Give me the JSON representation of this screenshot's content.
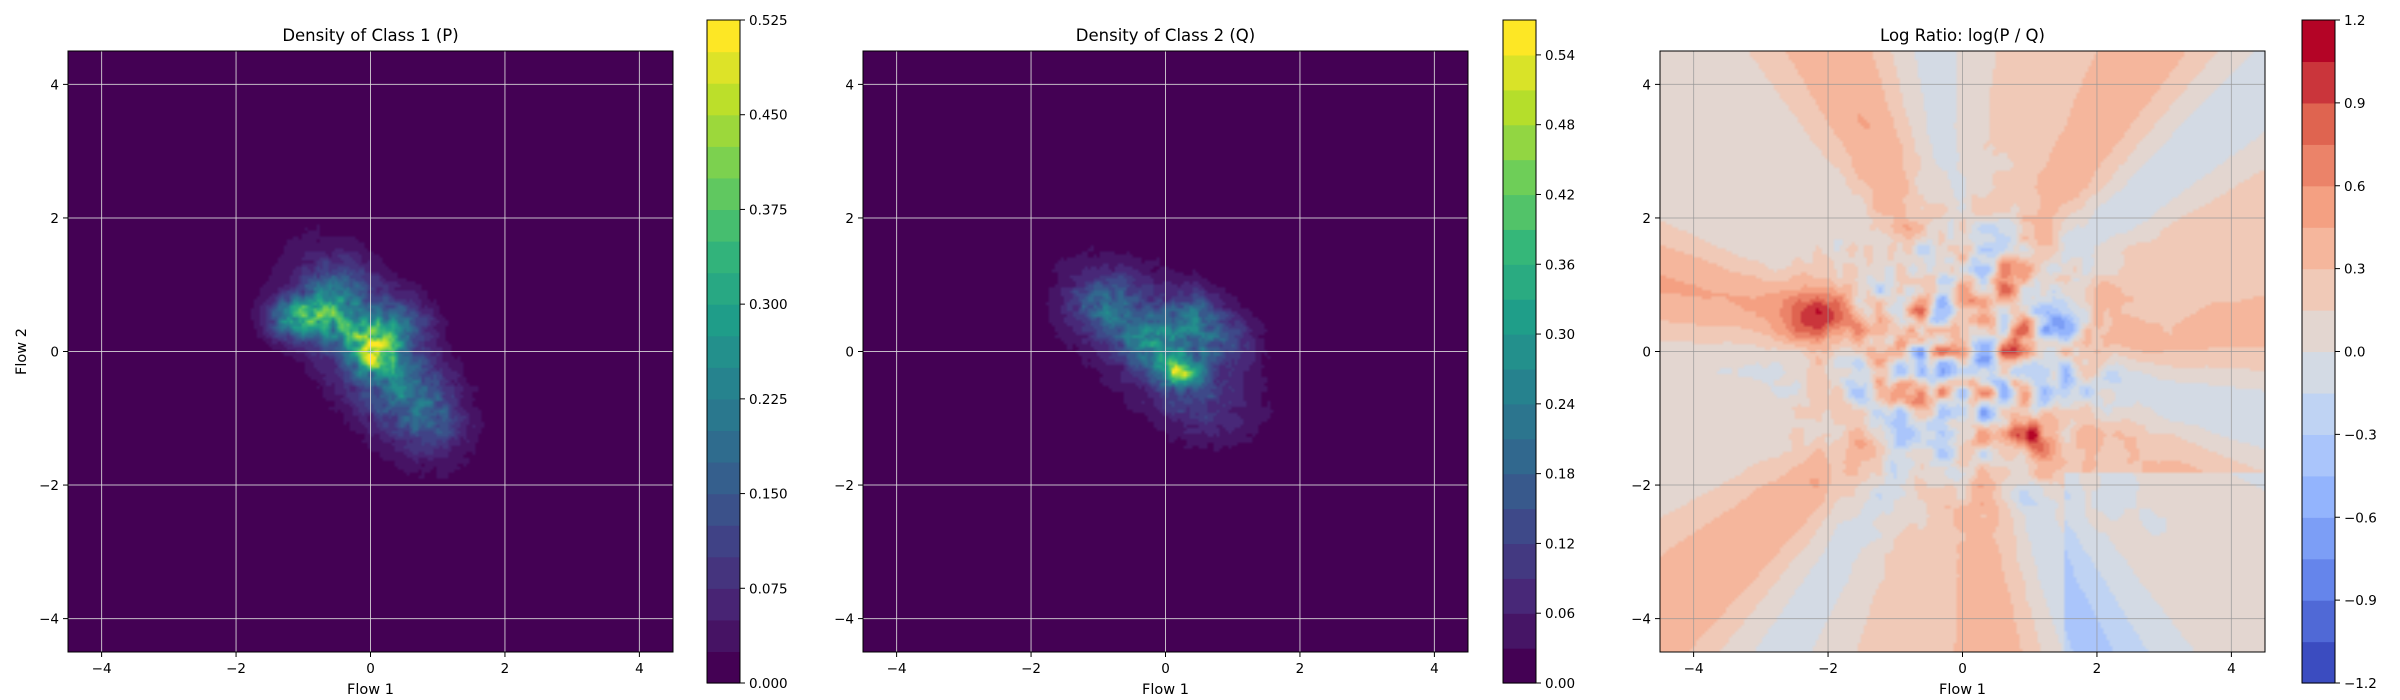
{
  "chart_data": [
    {
      "type": "contour",
      "title": "Density of Class 1 (P)",
      "xlabel": "Flow 1",
      "ylabel": "Flow 2",
      "xlim": [
        -4.5,
        4.5
      ],
      "ylim": [
        -4.5,
        4.5
      ],
      "xticks": [
        -4,
        -2,
        0,
        2,
        4
      ],
      "yticks": [
        -4,
        -2,
        0,
        2,
        4
      ],
      "xtick_labels": [
        "−4",
        "−2",
        "0",
        "2",
        "4"
      ],
      "ytick_labels": [
        "−4",
        "−2",
        "0",
        "2",
        "4"
      ],
      "grid": true,
      "colormap": "viridis",
      "colorbar": {
        "min": 0.0,
        "max": 0.525,
        "levels": 21,
        "ticks": [
          0.0,
          0.075,
          0.15,
          0.225,
          0.3,
          0.375,
          0.45,
          0.525
        ],
        "tick_labels": [
          "0.000",
          "0.075",
          "0.150",
          "0.225",
          "0.300",
          "0.375",
          "0.450",
          "0.525"
        ]
      },
      "blobs": [
        {
          "x": 0.0,
          "y": 0.0,
          "sx": 1.15,
          "sy": 0.55,
          "rot_deg": -55,
          "amp": 0.12
        },
        {
          "x": -1.1,
          "y": 0.5,
          "sx": 0.3,
          "sy": 0.22,
          "rot_deg": 0,
          "amp": 0.24
        },
        {
          "x": -0.6,
          "y": 0.55,
          "sx": 0.3,
          "sy": 0.25,
          "rot_deg": 0,
          "amp": 0.16
        },
        {
          "x": 0.0,
          "y": 0.05,
          "sx": 0.3,
          "sy": 0.25,
          "rot_deg": -40,
          "amp": 0.28
        },
        {
          "x": 0.05,
          "y": -0.05,
          "sx": 0.1,
          "sy": 0.08,
          "rot_deg": -40,
          "amp": 0.2
        },
        {
          "x": 0.4,
          "y": 0.4,
          "sx": 0.35,
          "sy": 0.3,
          "rot_deg": 0,
          "amp": 0.12
        },
        {
          "x": 0.6,
          "y": -0.6,
          "sx": 0.4,
          "sy": 0.3,
          "rot_deg": 0,
          "amp": 0.11
        },
        {
          "x": 0.9,
          "y": -1.1,
          "sx": 0.35,
          "sy": 0.3,
          "rot_deg": 0,
          "amp": 0.09
        },
        {
          "x": -0.5,
          "y": 1.0,
          "sx": 0.35,
          "sy": 0.3,
          "rot_deg": 0,
          "amp": 0.08
        }
      ]
    },
    {
      "type": "contour",
      "title": "Density of Class 2 (Q)",
      "xlabel": "Flow 1",
      "ylabel": "",
      "xlim": [
        -4.5,
        4.5
      ],
      "ylim": [
        -4.5,
        4.5
      ],
      "xticks": [
        -4,
        -2,
        0,
        2,
        4
      ],
      "yticks": [
        -4,
        -2,
        0,
        2,
        4
      ],
      "xtick_labels": [
        "−4",
        "−2",
        "0",
        "2",
        "4"
      ],
      "ytick_labels": [
        "−4",
        "−2",
        "0",
        "2",
        "4"
      ],
      "grid": true,
      "colormap": "viridis",
      "colorbar": {
        "min": 0.0,
        "max": 0.57,
        "levels": 19,
        "ticks": [
          0.0,
          0.06,
          0.12,
          0.18,
          0.24,
          0.3,
          0.36,
          0.42,
          0.48,
          0.54
        ],
        "tick_labels": [
          "0.00",
          "0.06",
          "0.12",
          "0.18",
          "0.24",
          "0.30",
          "0.36",
          "0.42",
          "0.48",
          "0.54"
        ]
      },
      "blobs": [
        {
          "x": -0.1,
          "y": 0.1,
          "sx": 1.1,
          "sy": 0.6,
          "rot_deg": -40,
          "amp": 0.11
        },
        {
          "x": -0.9,
          "y": 0.7,
          "sx": 0.35,
          "sy": 0.3,
          "rot_deg": 0,
          "amp": 0.14
        },
        {
          "x": -0.2,
          "y": 0.15,
          "sx": 0.3,
          "sy": 0.25,
          "rot_deg": 0,
          "amp": 0.16
        },
        {
          "x": 0.2,
          "y": -0.3,
          "sx": 0.25,
          "sy": 0.2,
          "rot_deg": 0,
          "amp": 0.24
        },
        {
          "x": 0.22,
          "y": -0.32,
          "sx": 0.08,
          "sy": 0.07,
          "rot_deg": 0,
          "amp": 0.2
        },
        {
          "x": 0.4,
          "y": 0.5,
          "sx": 0.3,
          "sy": 0.3,
          "rot_deg": 0,
          "amp": 0.14
        },
        {
          "x": 0.9,
          "y": 0.2,
          "sx": 0.35,
          "sy": 0.3,
          "rot_deg": 0,
          "amp": 0.08
        },
        {
          "x": 0.6,
          "y": -0.9,
          "sx": 0.4,
          "sy": 0.3,
          "rot_deg": 0,
          "amp": 0.06
        }
      ]
    },
    {
      "type": "contour",
      "title": "Log Ratio: log(P / Q)",
      "xlabel": "Flow 1",
      "ylabel": "",
      "xlim": [
        -4.5,
        4.5
      ],
      "ylim": [
        -4.5,
        4.5
      ],
      "xticks": [
        -4,
        -2,
        0,
        2,
        4
      ],
      "yticks": [
        -4,
        -2,
        0,
        2,
        4
      ],
      "xtick_labels": [
        "−4",
        "−2",
        "0",
        "2",
        "4"
      ],
      "ytick_labels": [
        "−4",
        "−2",
        "0",
        "2",
        "4"
      ],
      "grid": true,
      "colormap": "coolwarm",
      "colorbar": {
        "min": -1.2,
        "max": 1.2,
        "levels": 16,
        "ticks": [
          -1.2,
          -0.9,
          -0.6,
          -0.3,
          0.0,
          0.3,
          0.6,
          0.9,
          1.2
        ],
        "tick_labels": [
          "−1.2",
          "−0.9",
          "−0.6",
          "−0.3",
          "0.0",
          "0.3",
          "0.6",
          "0.9",
          "1.2"
        ]
      }
    }
  ]
}
